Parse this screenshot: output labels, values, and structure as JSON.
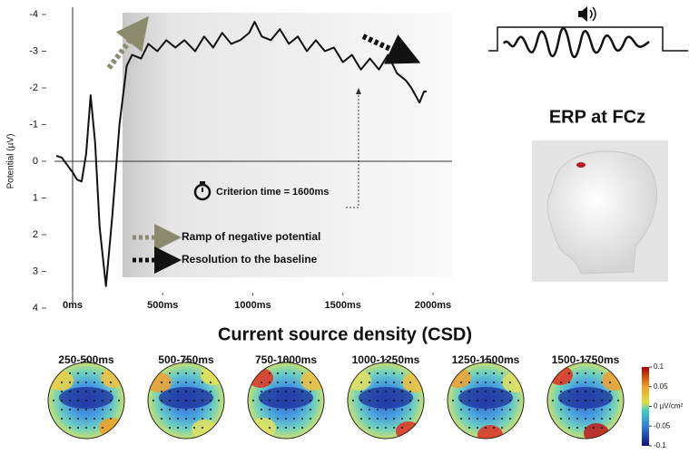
{
  "chart_data": {
    "type": "line",
    "y_label": "Potential (µV)",
    "x": [
      -90,
      -60,
      -30,
      0,
      25,
      50,
      75,
      100,
      125,
      150,
      185,
      220,
      260,
      300,
      330,
      380,
      420,
      470,
      520,
      570,
      620,
      680,
      730,
      780,
      830,
      880,
      930,
      980,
      1010,
      1050,
      1100,
      1150,
      1200,
      1250,
      1300,
      1350,
      1400,
      1450,
      1500,
      1550,
      1600,
      1650,
      1700,
      1750,
      1800,
      1850,
      1880,
      1925,
      1950,
      1965
    ],
    "values": [
      -0.15,
      -0.1,
      0.1,
      0.3,
      0.5,
      0.55,
      -0.2,
      -1.8,
      -0.5,
      1.8,
      3.4,
      1.5,
      -1.0,
      -2.6,
      -2.9,
      -2.8,
      -3.2,
      -3.0,
      -3.3,
      -3.1,
      -3.3,
      -3.0,
      -3.4,
      -3.1,
      -3.5,
      -3.2,
      -3.3,
      -3.5,
      -3.8,
      -3.4,
      -3.3,
      -3.6,
      -3.2,
      -3.4,
      -3.0,
      -3.3,
      -3.0,
      -3.1,
      -2.7,
      -2.9,
      -2.5,
      -2.8,
      -2.5,
      -2.9,
      -2.4,
      -2.2,
      -2.0,
      -1.6,
      -1.9,
      -1.9
    ],
    "color": "#111111",
    "xlim": [
      -100,
      2060
    ],
    "xticks": [
      {
        "value": 0,
        "label": "0ms"
      },
      {
        "value": 500,
        "label": "500ms"
      },
      {
        "value": 1000,
        "label": "1000ms"
      },
      {
        "value": 1500,
        "label": "1500ms"
      },
      {
        "value": 2000,
        "label": "2000ms"
      }
    ],
    "ylim": [
      -4,
      4
    ],
    "y_inverted": true,
    "yticks": [
      -4,
      -3,
      -2,
      -1,
      0,
      1,
      2,
      3,
      4
    ],
    "annotations": {
      "criterion": "Criterion time = 1600ms",
      "ramp": "Ramp of negative potential",
      "resolution": "Resolution to the baseline"
    }
  },
  "inset": {
    "title": "ERP at FCz"
  },
  "csd": {
    "title": "Current source density (CSD)",
    "windows": [
      "250-500ms",
      "500-750ms",
      "750-1000ms",
      "1000-1250ms",
      "1250-1500ms",
      "1500-1750ms"
    ],
    "colorbar": {
      "lim": [
        -0.1,
        0.1
      ],
      "ticks": [
        0.1,
        0.05,
        {
          "value": 0,
          "label": "0 µV/cm²"
        },
        -0.05,
        -0.1
      ]
    }
  }
}
